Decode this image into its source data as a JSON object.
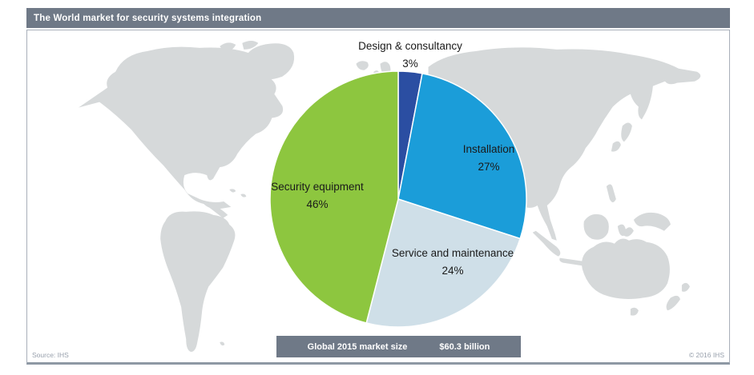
{
  "header": {
    "title": "The World market for security systems integration"
  },
  "chart_data": {
    "type": "pie",
    "title": "The World market for security systems integration",
    "start_angle_deg": -90,
    "direction": "clockwise",
    "legend": "labels-on-chart",
    "slices": [
      {
        "label": "Design & consultancy",
        "pct_label": "3%",
        "value": 3,
        "color": "#2B4EA2"
      },
      {
        "label": "Installation",
        "pct_label": "27%",
        "value": 27,
        "color": "#1B9DD9"
      },
      {
        "label": "Service and maintenance",
        "pct_label": "24%",
        "value": 24,
        "color": "#CFDFE8"
      },
      {
        "label": "Security equipment",
        "pct_label": "46%",
        "value": 46,
        "color": "#8DC63F"
      }
    ]
  },
  "summary_bar": {
    "label": "Global 2015 market size",
    "value": "$60.3 billion"
  },
  "footer": {
    "source": "Source: IHS",
    "copyright": "© 2016 IHS"
  },
  "colors": {
    "header_bar": "#6F7987",
    "summary_bar": "#6F7987",
    "map_fill": "#D6D9DA",
    "page_bg": "#FFFFFF"
  }
}
